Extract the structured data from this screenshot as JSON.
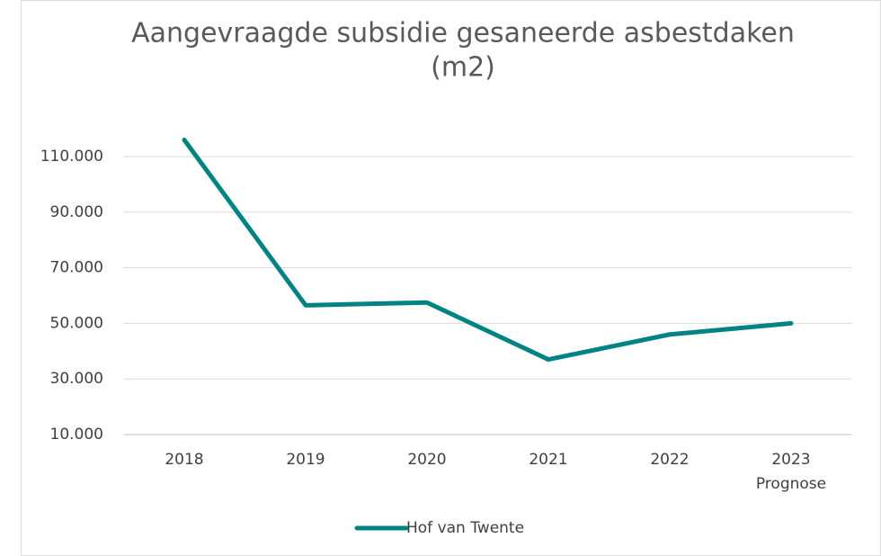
{
  "chart_data": {
    "type": "line",
    "title": [
      "Aangevraagde subsidie gesaneerde asbestdaken",
      "(m2)"
    ],
    "categories": [
      "2018",
      "2019",
      "2020",
      "2021",
      "2022",
      "2023"
    ],
    "category_notes": [
      null,
      null,
      null,
      null,
      null,
      "Prognose"
    ],
    "series": [
      {
        "name": "Hof van Twente",
        "color": "#028383",
        "values": [
          116000,
          56500,
          57500,
          37000,
          46000,
          50000
        ]
      }
    ],
    "ylim": [
      10000,
      120000
    ],
    "yticks": [
      {
        "value": 10000,
        "label": "10.000"
      },
      {
        "value": 30000,
        "label": "30.000"
      },
      {
        "value": 50000,
        "label": "50.000"
      },
      {
        "value": 70000,
        "label": "70.000"
      },
      {
        "value": 90000,
        "label": "90.000"
      },
      {
        "value": 110000,
        "label": "110.000"
      }
    ],
    "grid": true,
    "legend": "bottom"
  }
}
